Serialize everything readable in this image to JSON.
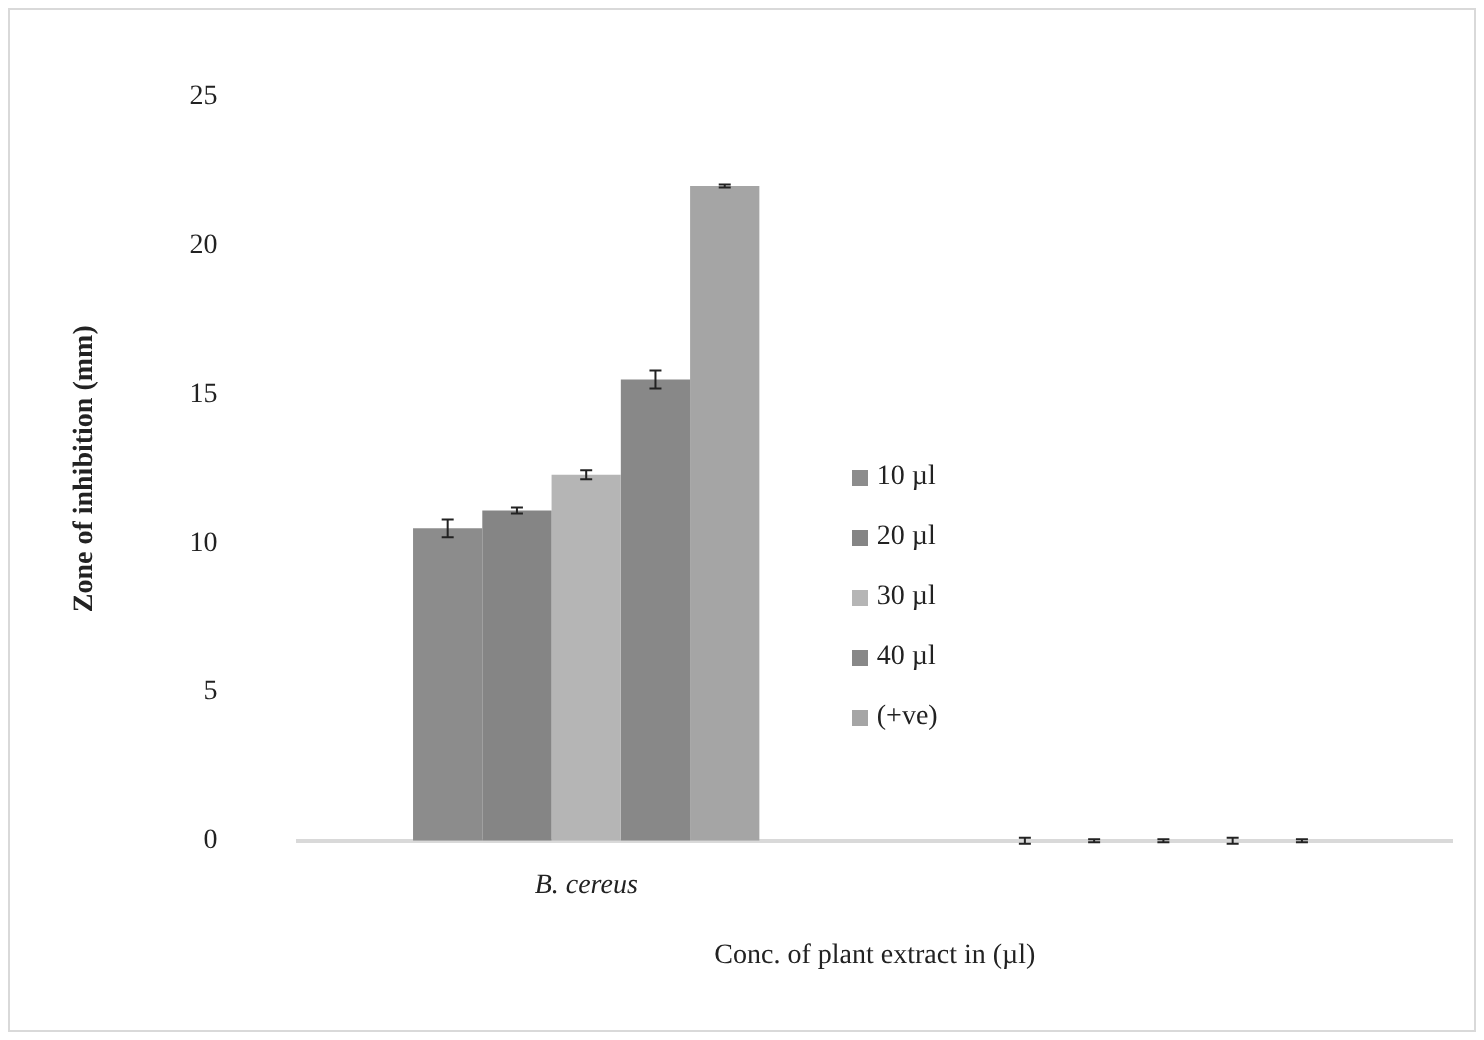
{
  "chart_data": {
    "type": "bar",
    "xlabel": "Conc. of plant extract in (µl)",
    "ylabel": "Zone of inhibition (mm)",
    "categories": [
      "B. cereus",
      null
    ],
    "series": [
      {
        "name": "10 µl",
        "color": "#8c8c8c",
        "values": [
          10.5,
          0
        ],
        "errors": [
          0.3,
          0.1
        ]
      },
      {
        "name": "20 µl",
        "color": "#858585",
        "values": [
          11.1,
          0
        ],
        "errors": [
          0.1,
          0.05
        ]
      },
      {
        "name": "30 µl",
        "color": "#b5b5b5",
        "values": [
          12.3,
          0
        ],
        "errors": [
          0.15,
          0.05
        ]
      },
      {
        "name": "40 µl",
        "color": "#888888",
        "values": [
          15.5,
          0
        ],
        "errors": [
          0.3,
          0.1
        ]
      },
      {
        "name": "(+ve)",
        "color": "#a5a5a5",
        "values": [
          22.0,
          0
        ],
        "errors": [
          0.05,
          0.05
        ]
      }
    ],
    "ylim": [
      0,
      25
    ],
    "yticks": [
      0,
      5,
      10,
      15,
      20,
      25
    ],
    "grid": false,
    "legend": "center"
  }
}
